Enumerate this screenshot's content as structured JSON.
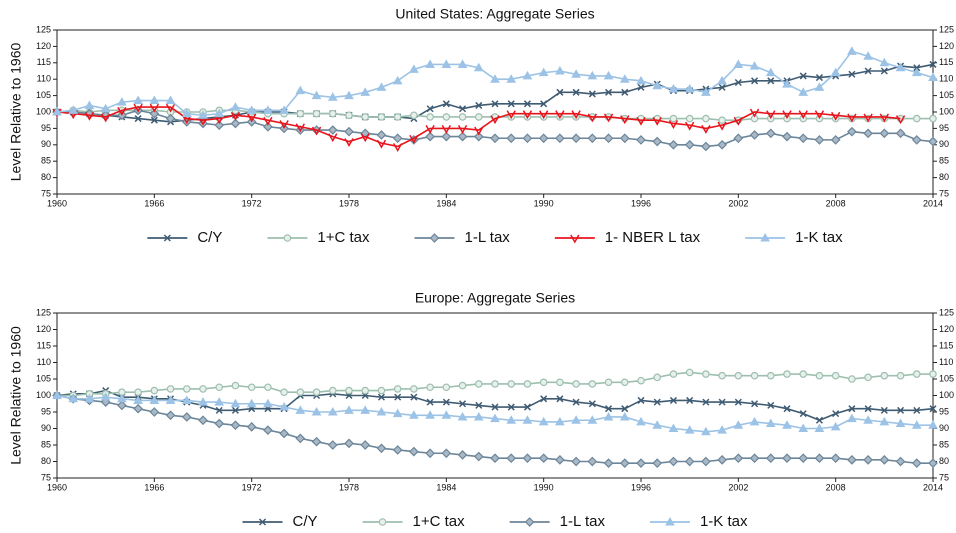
{
  "chart_data": [
    {
      "type": "line",
      "title": "United States: Aggregate Series",
      "y_label": "Level Relative to 1960",
      "x": [
        1960,
        1961,
        1962,
        1963,
        1964,
        1965,
        1966,
        1967,
        1968,
        1969,
        1970,
        1971,
        1972,
        1973,
        1974,
        1975,
        1976,
        1977,
        1978,
        1979,
        1980,
        1981,
        1982,
        1983,
        1984,
        1985,
        1986,
        1987,
        1988,
        1989,
        1990,
        1991,
        1992,
        1993,
        1994,
        1995,
        1996,
        1997,
        1998,
        1999,
        2000,
        2001,
        2002,
        2003,
        2004,
        2005,
        2006,
        2007,
        2008,
        2009,
        2010,
        2011,
        2012,
        2013,
        2014
      ],
      "xlim": [
        1960,
        2014
      ],
      "xticks": [
        1960,
        1966,
        1972,
        1978,
        1984,
        1990,
        1996,
        2002,
        2008,
        2014
      ],
      "ylim": [
        75,
        125
      ],
      "yticks": [
        75,
        80,
        85,
        90,
        95,
        100,
        105,
        110,
        115,
        120,
        125
      ],
      "series": [
        {
          "name": "C/Y",
          "color": "#3f5b72",
          "marker": "x",
          "values": [
            100,
            100,
            99.5,
            99,
            98.5,
            98,
            97.5,
            97,
            97.5,
            98,
            98.5,
            99,
            100,
            100,
            100,
            99.5,
            99.5,
            99.5,
            99,
            98.5,
            98.5,
            98.5,
            98,
            101,
            102.5,
            101,
            102,
            102.5,
            102.5,
            102.5,
            102.5,
            106,
            106,
            105.5,
            106,
            106,
            107.5,
            108.5,
            106.5,
            106.5,
            107,
            107.5,
            109,
            109.5,
            109.5,
            109.5,
            111,
            110.5,
            111,
            111.5,
            112.5,
            112.5,
            114,
            113.5,
            114.5
          ]
        },
        {
          "name": "1+C tax",
          "color": "#9dbfaf",
          "marker": "circle",
          "values": [
            100,
            100.5,
            100,
            100.5,
            100.5,
            100.5,
            100.5,
            100,
            100,
            100,
            100.5,
            100.5,
            100,
            99.5,
            99.5,
            99.5,
            99.5,
            99.5,
            99,
            98.5,
            98.5,
            98.5,
            99,
            98.5,
            98.5,
            98.5,
            98.5,
            98.5,
            98.5,
            98.5,
            98.5,
            98.5,
            98.5,
            98.5,
            98.5,
            98,
            98,
            98,
            98,
            98,
            98,
            97.5,
            97.5,
            98,
            98,
            98,
            98,
            98,
            98,
            98,
            98,
            98,
            98,
            98,
            98
          ]
        },
        {
          "name": "1-L tax",
          "color": "#6b8599",
          "marker": "diamond",
          "values": [
            100,
            100,
            99.5,
            99,
            99,
            100.5,
            99.5,
            98,
            97,
            96.5,
            96,
            96.5,
            97,
            95.5,
            95,
            94.5,
            94.5,
            94.5,
            94,
            93.5,
            93,
            92,
            91.5,
            92.5,
            92.5,
            92.5,
            92.5,
            92,
            92,
            92,
            92,
            92,
            92,
            92,
            92,
            92,
            91.5,
            91,
            90,
            90,
            89.5,
            90,
            92,
            93,
            93.5,
            92.5,
            92,
            91.5,
            91.5,
            94,
            93.5,
            93.5,
            93.5,
            91.5,
            91
          ]
        },
        {
          "name": "1- NBER L tax",
          "color": "#e8141c",
          "marker": "vtri",
          "values": [
            100,
            99.5,
            99,
            98.5,
            100.5,
            101.5,
            101.5,
            101.5,
            98,
            97.5,
            98,
            99,
            98.5,
            97.5,
            96.5,
            95.5,
            94.5,
            92.5,
            91,
            92.5,
            90.5,
            89.5,
            92,
            95,
            95,
            95,
            94.5,
            98,
            99.5,
            99.5,
            99.5,
            99.5,
            99.5,
            98.5,
            98.5,
            98,
            97.5,
            97.5,
            96.5,
            96,
            95,
            96,
            97.5,
            100,
            99.5,
            99.5,
            99.5,
            99.5,
            99,
            98.5,
            98.5,
            98.5,
            98,
            null,
            null
          ]
        },
        {
          "name": "1-K tax",
          "color": "#9cc3e6",
          "marker": "tri",
          "values": [
            100,
            100.5,
            102,
            101,
            103,
            103.5,
            103.5,
            103.5,
            99.5,
            99,
            99.5,
            101.5,
            100.5,
            100.5,
            100.5,
            106.5,
            105,
            104.5,
            105,
            106,
            107.5,
            109.5,
            113,
            114.5,
            114.5,
            114.5,
            113.5,
            110,
            110,
            111,
            112,
            112.5,
            111.5,
            111,
            111,
            110,
            109.5,
            108,
            107,
            107,
            106,
            109.5,
            114.5,
            114,
            112,
            108.5,
            106,
            107.5,
            112,
            118.5,
            117,
            115,
            113.5,
            112,
            110.5
          ]
        }
      ]
    },
    {
      "type": "line",
      "title": "Europe: Aggregate Series",
      "y_label": "Level Relative to 1960",
      "x": [
        1960,
        1961,
        1962,
        1963,
        1964,
        1965,
        1966,
        1967,
        1968,
        1969,
        1970,
        1971,
        1972,
        1973,
        1974,
        1975,
        1976,
        1977,
        1978,
        1979,
        1980,
        1981,
        1982,
        1983,
        1984,
        1985,
        1986,
        1987,
        1988,
        1989,
        1990,
        1991,
        1992,
        1993,
        1994,
        1995,
        1996,
        1997,
        1998,
        1999,
        2000,
        2001,
        2002,
        2003,
        2004,
        2005,
        2006,
        2007,
        2008,
        2009,
        2010,
        2011,
        2012,
        2013,
        2014
      ],
      "xlim": [
        1960,
        2014
      ],
      "xticks": [
        1960,
        1966,
        1972,
        1978,
        1984,
        1990,
        1996,
        2002,
        2008,
        2014
      ],
      "ylim": [
        75,
        125
      ],
      "yticks": [
        75,
        80,
        85,
        90,
        95,
        100,
        105,
        110,
        115,
        120,
        125
      ],
      "series": [
        {
          "name": "C/Y",
          "color": "#3f5b72",
          "marker": "x",
          "values": [
            100,
            100.5,
            100.5,
            101.5,
            99.5,
            99.5,
            99,
            99,
            98,
            97,
            95.5,
            95.5,
            96,
            96,
            96,
            100,
            100,
            100.5,
            100,
            100,
            99.5,
            99.5,
            99.5,
            98,
            98,
            97.5,
            97,
            96.5,
            96.5,
            96.5,
            99,
            99,
            98,
            97.5,
            96,
            96,
            98.5,
            98,
            98.5,
            98.5,
            98,
            98,
            98,
            97.5,
            97,
            96,
            94.5,
            92.5,
            94.5,
            96,
            96,
            95.5,
            95.5,
            95.5,
            96
          ]
        },
        {
          "name": "1+C tax",
          "color": "#9dbfaf",
          "marker": "circle",
          "values": [
            100,
            100,
            100.5,
            100.5,
            101,
            101,
            101.5,
            102,
            102,
            102,
            102.5,
            103,
            102.5,
            102.5,
            101,
            101,
            101,
            101.5,
            101.5,
            101.5,
            101.5,
            102,
            102,
            102.5,
            102.5,
            103,
            103.5,
            103.5,
            103.5,
            103.5,
            104,
            104,
            103.5,
            103.5,
            104,
            104,
            104.5,
            105.5,
            106.5,
            107,
            106.5,
            106,
            106,
            106,
            106,
            106.5,
            106.5,
            106,
            106,
            105,
            105.5,
            106,
            106,
            106.5,
            106.5
          ]
        },
        {
          "name": "1-L tax",
          "color": "#6b8599",
          "marker": "diamond",
          "values": [
            100,
            99,
            98.5,
            98,
            97,
            96,
            95,
            94,
            93.5,
            92.5,
            91.5,
            91,
            90.5,
            89.5,
            88.5,
            87,
            86,
            85,
            85.5,
            85,
            84,
            83.5,
            83,
            82.5,
            82.5,
            82,
            81.5,
            81,
            81,
            81,
            81,
            80.5,
            80,
            80,
            79.5,
            79.5,
            79.5,
            79.5,
            80,
            80,
            80,
            80.5,
            81,
            81,
            81,
            81,
            81,
            81,
            81,
            80.5,
            80.5,
            80.5,
            80,
            79.5,
            79.5
          ]
        },
        {
          "name": "1-K tax",
          "color": "#9cc3e6",
          "marker": "tri",
          "values": [
            100,
            99,
            99,
            99.5,
            99,
            98.5,
            98.5,
            98.5,
            98.5,
            98,
            98,
            97.5,
            97.5,
            97.5,
            96.5,
            95.5,
            95,
            95,
            95.5,
            95.5,
            95,
            94.5,
            94,
            94,
            94,
            93.5,
            93.5,
            93,
            92.5,
            92.5,
            92,
            92,
            92.5,
            92.5,
            93.5,
            93.5,
            92,
            91,
            90,
            89.5,
            89,
            89.5,
            91,
            92,
            91.5,
            91,
            90,
            90,
            90.5,
            93,
            92.5,
            92,
            91.5,
            91,
            91
          ]
        }
      ]
    }
  ]
}
